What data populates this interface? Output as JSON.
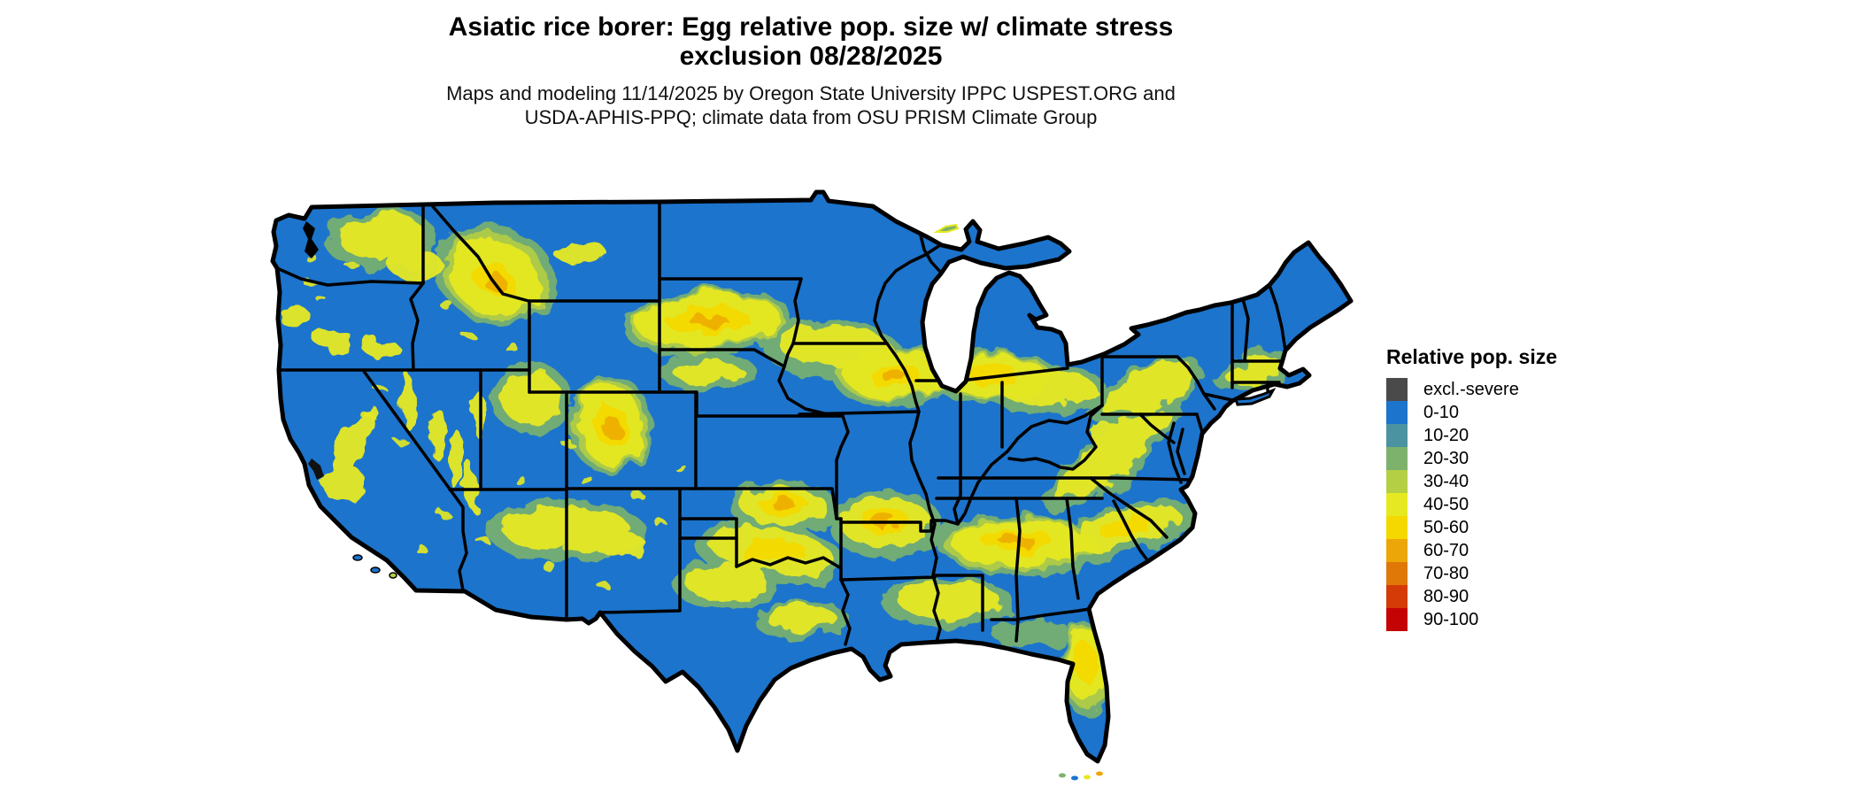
{
  "header": {
    "title_line1": "Asiatic rice borer: Egg relative pop. size w/ climate stress",
    "title_line2": "exclusion 08/28/2025",
    "subtitle_line1": "Maps and modeling 11/14/2025 by Oregon State University IPPC USPEST.ORG and",
    "subtitle_line2": "USDA-APHIS-PPQ; climate data from OSU PRISM Climate Group"
  },
  "legend": {
    "title": "Relative pop. size",
    "entries": [
      {
        "label": "excl.-severe",
        "color": "#4a4a4a"
      },
      {
        "label": "0-10",
        "color": "#1c74cc"
      },
      {
        "label": "10-20",
        "color": "#4b93a1"
      },
      {
        "label": "20-30",
        "color": "#7cb26b"
      },
      {
        "label": "30-40",
        "color": "#b5cf45"
      },
      {
        "label": "40-50",
        "color": "#e6e922"
      },
      {
        "label": "50-60",
        "color": "#f5d800"
      },
      {
        "label": "60-70",
        "color": "#eda607"
      },
      {
        "label": "70-80",
        "color": "#e07807"
      },
      {
        "label": "80-90",
        "color": "#d43b06"
      },
      {
        "label": "90-100",
        "color": "#c40404"
      }
    ]
  },
  "map": {
    "region": "Conterminous United States",
    "type": "raster choropleth with state borders",
    "base_class": "0-10",
    "base_color": "#1c74cc",
    "border_color": "#000000",
    "background_color": "#ffffff"
  }
}
